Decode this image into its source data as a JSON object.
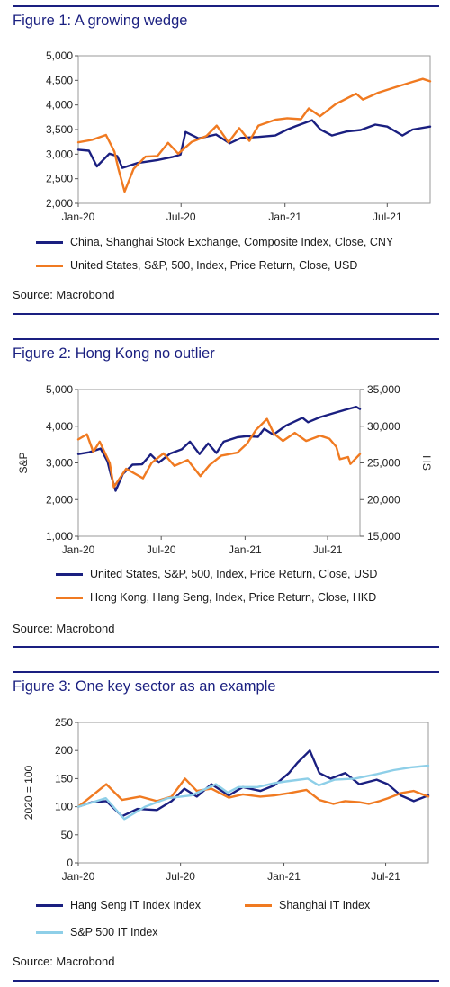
{
  "figures": [
    {
      "title": "Figure 1: A growing wedge",
      "source": "Source: Macrobond",
      "chart_data": {
        "type": "line",
        "x_ticks": [
          "Jan-20",
          "Jul-20",
          "Jan-21",
          "Jul-21"
        ],
        "x_range": [
          "2020-01-01",
          "2021-09-15"
        ],
        "y_left": {
          "label": "",
          "ticks": [
            "2,000",
            "2,500",
            "3,000",
            "3,500",
            "4,000",
            "4,500",
            "5,000"
          ],
          "range": [
            2000,
            5000
          ]
        },
        "y_right": null,
        "grid": false,
        "legend_position": "bottom",
        "series": [
          {
            "name": "China, Shanghai Stock Exchange, Composite Index, Close, CNY",
            "color": "#1a1f80",
            "axis": "left",
            "points": [
              [
                "2020-01-01",
                3090
              ],
              [
                "2020-01-20",
                3070
              ],
              [
                "2020-02-03",
                2750
              ],
              [
                "2020-02-25",
                3010
              ],
              [
                "2020-03-10",
                2960
              ],
              [
                "2020-03-19",
                2720
              ],
              [
                "2020-04-15",
                2820
              ],
              [
                "2020-05-20",
                2880
              ],
              [
                "2020-06-15",
                2940
              ],
              [
                "2020-06-30",
                2990
              ],
              [
                "2020-07-09",
                3450
              ],
              [
                "2020-08-01",
                3320
              ],
              [
                "2020-09-01",
                3400
              ],
              [
                "2020-09-25",
                3220
              ],
              [
                "2020-10-15",
                3330
              ],
              [
                "2020-11-15",
                3350
              ],
              [
                "2020-12-15",
                3380
              ],
              [
                "2021-01-05",
                3500
              ],
              [
                "2021-01-20",
                3570
              ],
              [
                "2021-02-18",
                3690
              ],
              [
                "2021-03-05",
                3500
              ],
              [
                "2021-03-25",
                3380
              ],
              [
                "2021-04-20",
                3460
              ],
              [
                "2021-05-15",
                3490
              ],
              [
                "2021-06-10",
                3600
              ],
              [
                "2021-07-01",
                3560
              ],
              [
                "2021-07-28",
                3380
              ],
              [
                "2021-08-15",
                3500
              ],
              [
                "2021-09-15",
                3560
              ]
            ]
          },
          {
            "name": "United States, S&P, 500, Index, Price Return, Close, USD",
            "color": "#f07a21",
            "axis": "left",
            "points": [
              [
                "2020-01-01",
                3240
              ],
              [
                "2020-01-25",
                3290
              ],
              [
                "2020-02-19",
                3390
              ],
              [
                "2020-03-05",
                3050
              ],
              [
                "2020-03-12",
                2700
              ],
              [
                "2020-03-23",
                2240
              ],
              [
                "2020-04-08",
                2700
              ],
              [
                "2020-04-29",
                2950
              ],
              [
                "2020-05-20",
                2960
              ],
              [
                "2020-06-08",
                3230
              ],
              [
                "2020-06-26",
                3010
              ],
              [
                "2020-07-20",
                3250
              ],
              [
                "2020-08-15",
                3370
              ],
              [
                "2020-09-02",
                3580
              ],
              [
                "2020-09-23",
                3240
              ],
              [
                "2020-10-12",
                3530
              ],
              [
                "2020-10-30",
                3270
              ],
              [
                "2020-11-15",
                3580
              ],
              [
                "2020-12-15",
                3700
              ],
              [
                "2021-01-05",
                3730
              ],
              [
                "2021-01-29",
                3710
              ],
              [
                "2021-02-12",
                3930
              ],
              [
                "2021-03-04",
                3770
              ],
              [
                "2021-04-01",
                4020
              ],
              [
                "2021-05-07",
                4230
              ],
              [
                "2021-05-19",
                4110
              ],
              [
                "2021-06-15",
                4250
              ],
              [
                "2021-07-15",
                4360
              ],
              [
                "2021-08-15",
                4470
              ],
              [
                "2021-09-02",
                4530
              ],
              [
                "2021-09-15",
                4480
              ]
            ]
          }
        ]
      }
    },
    {
      "title": "Figure 2: Hong Kong no outlier",
      "source": "Source: Macrobond",
      "chart_data": {
        "type": "line",
        "x_ticks": [
          "Jan-20",
          "Jul-20",
          "Jan-21",
          "Jul-21"
        ],
        "x_range": [
          "2020-01-01",
          "2021-09-10"
        ],
        "y_left": {
          "label": "S&P",
          "ticks": [
            "1,000",
            "2,000",
            "3,000",
            "4,000",
            "5,000"
          ],
          "range": [
            1000,
            5000
          ]
        },
        "y_right": {
          "label": "HS",
          "ticks": [
            "15,000",
            "20,000",
            "25,000",
            "30,000",
            "35,000"
          ],
          "range": [
            15000,
            35000
          ]
        },
        "grid": false,
        "legend_position": "bottom",
        "series": [
          {
            "name": "United States, S&P, 500, Index, Price Return, Close, USD",
            "color": "#1a1f80",
            "axis": "left",
            "points": [
              [
                "2020-01-01",
                3240
              ],
              [
                "2020-01-25",
                3290
              ],
              [
                "2020-02-19",
                3390
              ],
              [
                "2020-03-05",
                3050
              ],
              [
                "2020-03-12",
                2700
              ],
              [
                "2020-03-23",
                2240
              ],
              [
                "2020-04-08",
                2700
              ],
              [
                "2020-04-29",
                2950
              ],
              [
                "2020-05-20",
                2960
              ],
              [
                "2020-06-08",
                3230
              ],
              [
                "2020-06-26",
                3010
              ],
              [
                "2020-07-20",
                3250
              ],
              [
                "2020-08-15",
                3370
              ],
              [
                "2020-09-02",
                3580
              ],
              [
                "2020-09-23",
                3240
              ],
              [
                "2020-10-12",
                3530
              ],
              [
                "2020-10-30",
                3270
              ],
              [
                "2020-11-15",
                3580
              ],
              [
                "2020-12-15",
                3700
              ],
              [
                "2021-01-05",
                3730
              ],
              [
                "2021-01-29",
                3710
              ],
              [
                "2021-02-12",
                3930
              ],
              [
                "2021-03-04",
                3770
              ],
              [
                "2021-04-01",
                4020
              ],
              [
                "2021-05-07",
                4230
              ],
              [
                "2021-05-19",
                4110
              ],
              [
                "2021-06-15",
                4250
              ],
              [
                "2021-07-15",
                4360
              ],
              [
                "2021-08-15",
                4470
              ],
              [
                "2021-09-02",
                4530
              ],
              [
                "2021-09-10",
                4470
              ]
            ]
          },
          {
            "name": "Hong Kong, Hang Seng, Index, Price Return, Close, HKD",
            "color": "#f07a21",
            "axis": "right",
            "points": [
              [
                "2020-01-01",
                28200
              ],
              [
                "2020-01-20",
                28900
              ],
              [
                "2020-02-03",
                26500
              ],
              [
                "2020-02-17",
                27900
              ],
              [
                "2020-03-10",
                25000
              ],
              [
                "2020-03-19",
                21700
              ],
              [
                "2020-04-15",
                24200
              ],
              [
                "2020-05-22",
                22900
              ],
              [
                "2020-06-10",
                25000
              ],
              [
                "2020-07-06",
                26300
              ],
              [
                "2020-07-30",
                24600
              ],
              [
                "2020-08-28",
                25400
              ],
              [
                "2020-09-25",
                23200
              ],
              [
                "2020-10-15",
                24700
              ],
              [
                "2020-11-10",
                26000
              ],
              [
                "2020-12-15",
                26400
              ],
              [
                "2021-01-05",
                27600
              ],
              [
                "2021-01-25",
                29500
              ],
              [
                "2021-02-18",
                31000
              ],
              [
                "2021-03-05",
                29000
              ],
              [
                "2021-03-25",
                28000
              ],
              [
                "2021-04-20",
                29100
              ],
              [
                "2021-05-15",
                28000
              ],
              [
                "2021-06-15",
                28700
              ],
              [
                "2021-07-05",
                28300
              ],
              [
                "2021-07-20",
                27200
              ],
              [
                "2021-07-28",
                25500
              ],
              [
                "2021-08-15",
                25800
              ],
              [
                "2021-08-20",
                24850
              ],
              [
                "2021-09-10",
                26200
              ]
            ]
          }
        ]
      }
    },
    {
      "title": "Figure 3: One key sector as an example",
      "source": "Source: Macrobond",
      "chart_data": {
        "type": "line",
        "x_ticks": [
          "Jan-20",
          "Jul-20",
          "Jan-21",
          "Jul-21"
        ],
        "x_range": [
          "2020-01-01",
          "2021-09-15"
        ],
        "y_left": {
          "label": "2020 = 100",
          "ticks": [
            "0",
            "50",
            "100",
            "150",
            "200",
            "250"
          ],
          "range": [
            0,
            250
          ]
        },
        "y_right": null,
        "grid": false,
        "legend_position": "bottom",
        "series": [
          {
            "name": "Hang Seng IT Index Index",
            "color": "#1a1f80",
            "axis": "left",
            "points": [
              [
                "2020-01-01",
                100
              ],
              [
                "2020-01-25",
                108
              ],
              [
                "2020-02-20",
                110
              ],
              [
                "2020-03-19",
                83
              ],
              [
                "2020-04-15",
                96
              ],
              [
                "2020-05-20",
                94
              ],
              [
                "2020-06-15",
                110
              ],
              [
                "2020-07-08",
                132
              ],
              [
                "2020-07-30",
                118
              ],
              [
                "2020-08-25",
                140
              ],
              [
                "2020-09-25",
                120
              ],
              [
                "2020-10-20",
                135
              ],
              [
                "2020-11-20",
                128
              ],
              [
                "2020-12-15",
                138
              ],
              [
                "2021-01-10",
                160
              ],
              [
                "2021-01-25",
                178
              ],
              [
                "2021-02-16",
                200
              ],
              [
                "2021-03-05",
                160
              ],
              [
                "2021-03-25",
                150
              ],
              [
                "2021-04-20",
                160
              ],
              [
                "2021-05-15",
                140
              ],
              [
                "2021-06-15",
                148
              ],
              [
                "2021-07-05",
                140
              ],
              [
                "2021-07-28",
                120
              ],
              [
                "2021-08-20",
                110
              ],
              [
                "2021-09-15",
                120
              ]
            ]
          },
          {
            "name": "Shanghai IT Index",
            "color": "#f07a21",
            "axis": "left",
            "points": [
              [
                "2020-01-01",
                100
              ],
              [
                "2020-01-20",
                115
              ],
              [
                "2020-02-20",
                140
              ],
              [
                "2020-03-19",
                112
              ],
              [
                "2020-04-20",
                118
              ],
              [
                "2020-05-20",
                110
              ],
              [
                "2020-06-15",
                118
              ],
              [
                "2020-07-09",
                150
              ],
              [
                "2020-07-30",
                128
              ],
              [
                "2020-08-25",
                132
              ],
              [
                "2020-09-25",
                116
              ],
              [
                "2020-10-20",
                122
              ],
              [
                "2020-11-20",
                118
              ],
              [
                "2020-12-15",
                120
              ],
              [
                "2021-01-10",
                124
              ],
              [
                "2021-02-10",
                130
              ],
              [
                "2021-03-05",
                112
              ],
              [
                "2021-03-30",
                105
              ],
              [
                "2021-04-20",
                110
              ],
              [
                "2021-05-15",
                108
              ],
              [
                "2021-06-01",
                105
              ],
              [
                "2021-06-20",
                110
              ],
              [
                "2021-07-05",
                115
              ],
              [
                "2021-07-28",
                124
              ],
              [
                "2021-08-20",
                128
              ],
              [
                "2021-09-15",
                118
              ]
            ]
          },
          {
            "name": "S&P 500 IT Index",
            "color": "#8ecfe8",
            "axis": "left",
            "points": [
              [
                "2020-01-01",
                100
              ],
              [
                "2020-02-19",
                115
              ],
              [
                "2020-03-23",
                78
              ],
              [
                "2020-04-29",
                100
              ],
              [
                "2020-06-08",
                115
              ],
              [
                "2020-07-20",
                120
              ],
              [
                "2020-09-02",
                140
              ],
              [
                "2020-09-23",
                125
              ],
              [
                "2020-10-12",
                135
              ],
              [
                "2020-11-15",
                135
              ],
              [
                "2020-12-15",
                142
              ],
              [
                "2021-01-05",
                145
              ],
              [
                "2021-02-12",
                150
              ],
              [
                "2021-03-04",
                138
              ],
              [
                "2021-04-01",
                148
              ],
              [
                "2021-05-07",
                150
              ],
              [
                "2021-06-15",
                158
              ],
              [
                "2021-07-15",
                165
              ],
              [
                "2021-08-15",
                170
              ],
              [
                "2021-09-15",
                173
              ]
            ]
          }
        ]
      }
    }
  ]
}
